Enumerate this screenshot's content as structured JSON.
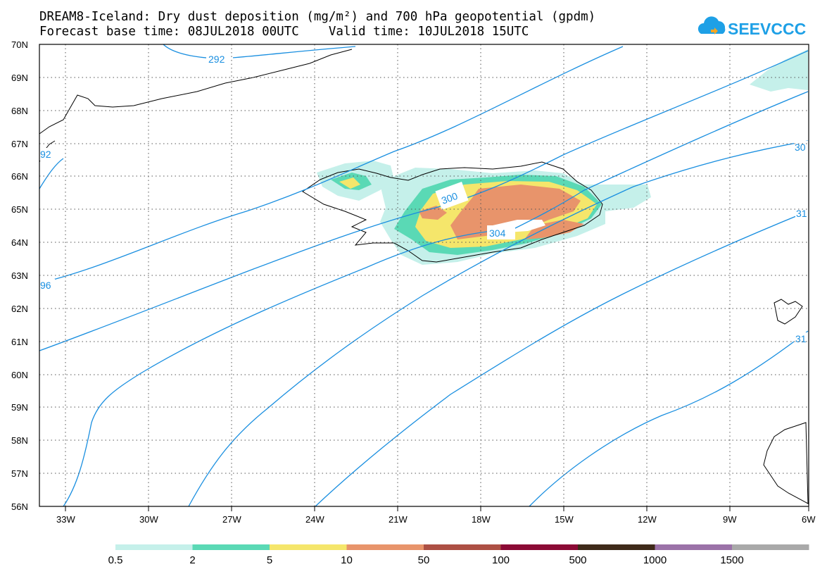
{
  "title": {
    "line1": "DREAM8-Iceland: Dry dust deposition (mg/m²) and 700 hPa geopotential (gpdm)",
    "line2": "Forecast base time: 08JUL2018 00UTC    Valid time: 10JUL2018 15UTC"
  },
  "logo": {
    "text": "SEEVCCC",
    "color": "#1ea0e6"
  },
  "map": {
    "lat_labels": [
      "70N",
      "69N",
      "68N",
      "67N",
      "66N",
      "65N",
      "64N",
      "63N",
      "62N",
      "61N",
      "60N",
      "59N",
      "58N",
      "57N",
      "56N"
    ],
    "lon_labels": [
      "33W",
      "30W",
      "27W",
      "24W",
      "21W",
      "18W",
      "15W",
      "12W",
      "9W",
      "6W"
    ],
    "contour_color": "#1a8fe0",
    "contour_labels": [
      "292",
      "300",
      "304",
      "30",
      "31",
      "96",
      "31",
      "92"
    ]
  },
  "colorbar": {
    "colors": [
      "#c5f0ea",
      "#5ad9b5",
      "#f5e66b",
      "#e8946b",
      "#ad5044",
      "#8b0a35",
      "#3f2a1a",
      "#9b72a8",
      "#a9a9a9"
    ],
    "labels": [
      "0.5",
      "2",
      "5",
      "10",
      "50",
      "100",
      "500",
      "1000",
      "1500"
    ]
  }
}
